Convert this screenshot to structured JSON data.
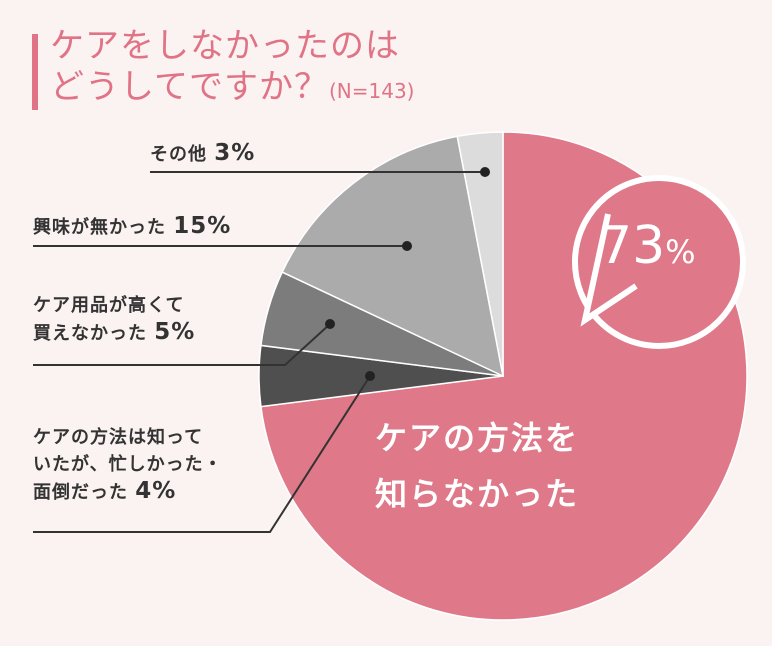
{
  "title": {
    "line1": "ケアをしなかったのは",
    "line2": "どうしてですか？",
    "n": "(N=143)"
  },
  "chart_data": {
    "type": "pie",
    "slices": [
      {
        "label": "ケアの方法を知らなかった",
        "value": 73,
        "color": "#df7888"
      },
      {
        "label": "ケアの方法は知っていたが、忙しかった・面倒だった",
        "value": 4,
        "color": "#4f4f4f"
      },
      {
        "label": "ケア用品が高くて買えなかった",
        "value": 5,
        "color": "#7c7c7c"
      },
      {
        "label": "興味が無かった",
        "value": 15,
        "color": "#ababab"
      },
      {
        "label": "その他",
        "value": 3,
        "color": "#dcdcdc"
      }
    ]
  },
  "labels": {
    "other": "その他",
    "other_pct": "3%",
    "no_interest": "興味が無かった",
    "no_interest_pct": "15%",
    "too_expensive_l1": "ケア用品が高くて",
    "too_expensive_l2": "買えなかった",
    "too_expensive_pct": "5%",
    "busy_l1": "ケアの方法は知って",
    "busy_l2": "いたが、忙しかった・",
    "busy_l3": "面倒だった",
    "busy_pct": "4%",
    "main_l1": "ケアの方法を",
    "main_l2": "知らなかった"
  },
  "bubble": {
    "value": "73",
    "symbol": "%"
  }
}
